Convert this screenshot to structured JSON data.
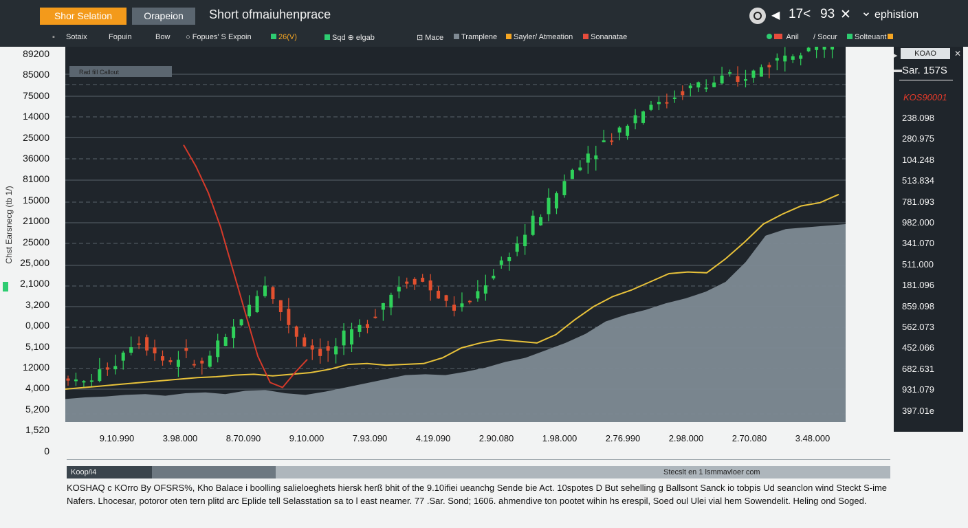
{
  "toolbar": {
    "primary_button": "Shor Selation",
    "secondary_button": "Orapeion",
    "title": "Short ofmaiuhenprace",
    "right_nav": {
      "back": "◀",
      "value1": "17<",
      "value2": "93",
      "close": "✕",
      "dropdown_label": "ephistion",
      "dropdown_caret": "⌄"
    }
  },
  "subtoolbar": {
    "items": [
      "Sotaix",
      "Fopuin",
      "Bow",
      "Fopues' S Expoin",
      "26(V)"
    ],
    "legend": [
      {
        "label": "Sqd ⊕ elgab",
        "color": "#2ecc71"
      },
      {
        "label": "⊡ Mace",
        "color": ""
      },
      {
        "label": "Tramplene",
        "color": "#7f8a93"
      },
      {
        "label": "Sayler/ Atmeation",
        "color": "#f5a623"
      },
      {
        "label": "Sonanatae",
        "color": "#e74c3c"
      }
    ],
    "right_legend": [
      {
        "label": "Anil",
        "color": "#e74c3c"
      },
      {
        "label": "/ Socur",
        "color": ""
      },
      {
        "label": "Solteuant",
        "color": "#2ecc71"
      }
    ]
  },
  "chart_overlay_label": "Rad fill Callout",
  "chart_data": {
    "type": "line",
    "title": "",
    "y_axis_title": "Chst Earsnecg (tb 1/)",
    "y_tick_labels": [
      "89200",
      "85000",
      "75000",
      "14000",
      "25000",
      "36000",
      "81000",
      "15000",
      "21000",
      "25000",
      "25,000",
      "2,1000",
      "3,200",
      "0,000",
      "5,100",
      "12000",
      "4,000",
      "5,200",
      "1,520",
      "0"
    ],
    "x_tick_labels": [
      "9.10.990",
      "3.98.000",
      "8.70.090",
      "9.10.000",
      "7.93.090",
      "4.19.090",
      "2.90.080",
      "1.98.000",
      "2.76.990",
      "2.98.000",
      "2.70.080",
      "3.48.000"
    ],
    "right_axis": {
      "header": "KOAO",
      "ticker": "Sar. 157S",
      "price_flag": "KOS90001",
      "labels": [
        "238.098",
        "280.975",
        "104.248",
        "513.834",
        "781.093",
        "982.000",
        "341.070",
        "511.000",
        "181.096",
        "859.098",
        "562.073",
        "452.066",
        "682.631",
        "931.079",
        "397.01e"
      ]
    },
    "area_series": [
      14,
      15,
      15.5,
      16.5,
      17,
      16,
      17.5,
      18,
      17,
      19,
      19.5,
      17.5,
      16.5,
      18.5,
      21,
      23.5,
      26,
      28.5,
      29,
      28.5,
      30.5,
      33,
      36.5,
      39,
      43.5,
      48,
      53.5,
      61,
      65,
      68,
      72,
      75,
      79,
      85,
      97,
      113,
      117,
      118,
      119,
      120
    ],
    "ma_series": [
      20,
      21,
      22,
      23,
      24,
      25,
      26,
      27,
      27.5,
      28.5,
      29,
      28,
      29,
      30,
      32,
      35,
      35.5,
      34.5,
      35,
      35.5,
      39,
      45,
      48,
      50,
      49,
      48,
      53,
      62,
      70,
      76,
      80,
      85,
      90,
      91,
      90.5,
      99,
      109,
      120,
      126,
      131,
      133,
      138
    ],
    "candle_close": [
      28,
      23,
      24,
      27,
      30,
      34,
      37,
      43,
      48,
      50,
      47,
      42,
      38,
      37,
      40,
      39,
      36,
      34,
      40,
      45,
      50,
      57,
      64,
      70,
      78,
      84,
      74,
      67,
      60,
      53,
      47,
      45,
      43,
      42,
      46,
      50,
      53,
      57,
      62,
      68,
      73,
      78,
      83,
      86,
      88,
      85,
      80,
      76,
      72,
      69,
      70,
      74,
      79,
      85,
      91,
      97,
      103,
      108,
      114,
      121,
      127,
      133,
      139,
      146,
      153,
      158,
      163,
      167,
      170,
      173,
      178,
      182,
      186,
      190,
      194,
      192,
      195,
      198,
      201,
      203,
      205,
      203,
      206,
      208,
      207,
      205,
      210,
      212,
      215,
      218,
      220,
      224,
      226,
      228,
      229,
      228,
      227,
      229,
      230
    ],
    "decline_line": [
      168,
      155,
      139,
      118,
      92,
      66,
      40,
      24,
      21,
      30,
      38
    ],
    "legend": [
      "Sqd ⊕ elgab",
      "Mace",
      "Tramplene",
      "Sayler/ Atmeation",
      "Sonanatae"
    ],
    "grid": true,
    "ylim": [
      0,
      89200
    ]
  },
  "footer": {
    "tabs": [
      "Koop/i4",
      "",
      "Stecslt en 1 lsmmavloer com"
    ],
    "line1": "KOSHAQ c KOrro By OFSRS%, Kho Balace i boolling salieloeghets hiersk herß bhit of the 9.10ifiei ueanchg Sende bie Act. 10spotes D But sehelling g Ballsont Sanck io tobpis Ud seanclon wind Steckt S-ime",
    "line2": "Nafers. Lhocesar, potoror oten tern plitd arc Eplide tell Selasstation sa to l east neamer. 77 .Sar. Sond;  1606. ahmendive ton pootet wihin hs erespil, Soed oul Ulei vial hem Sowendelit. Heling ond Soged."
  }
}
